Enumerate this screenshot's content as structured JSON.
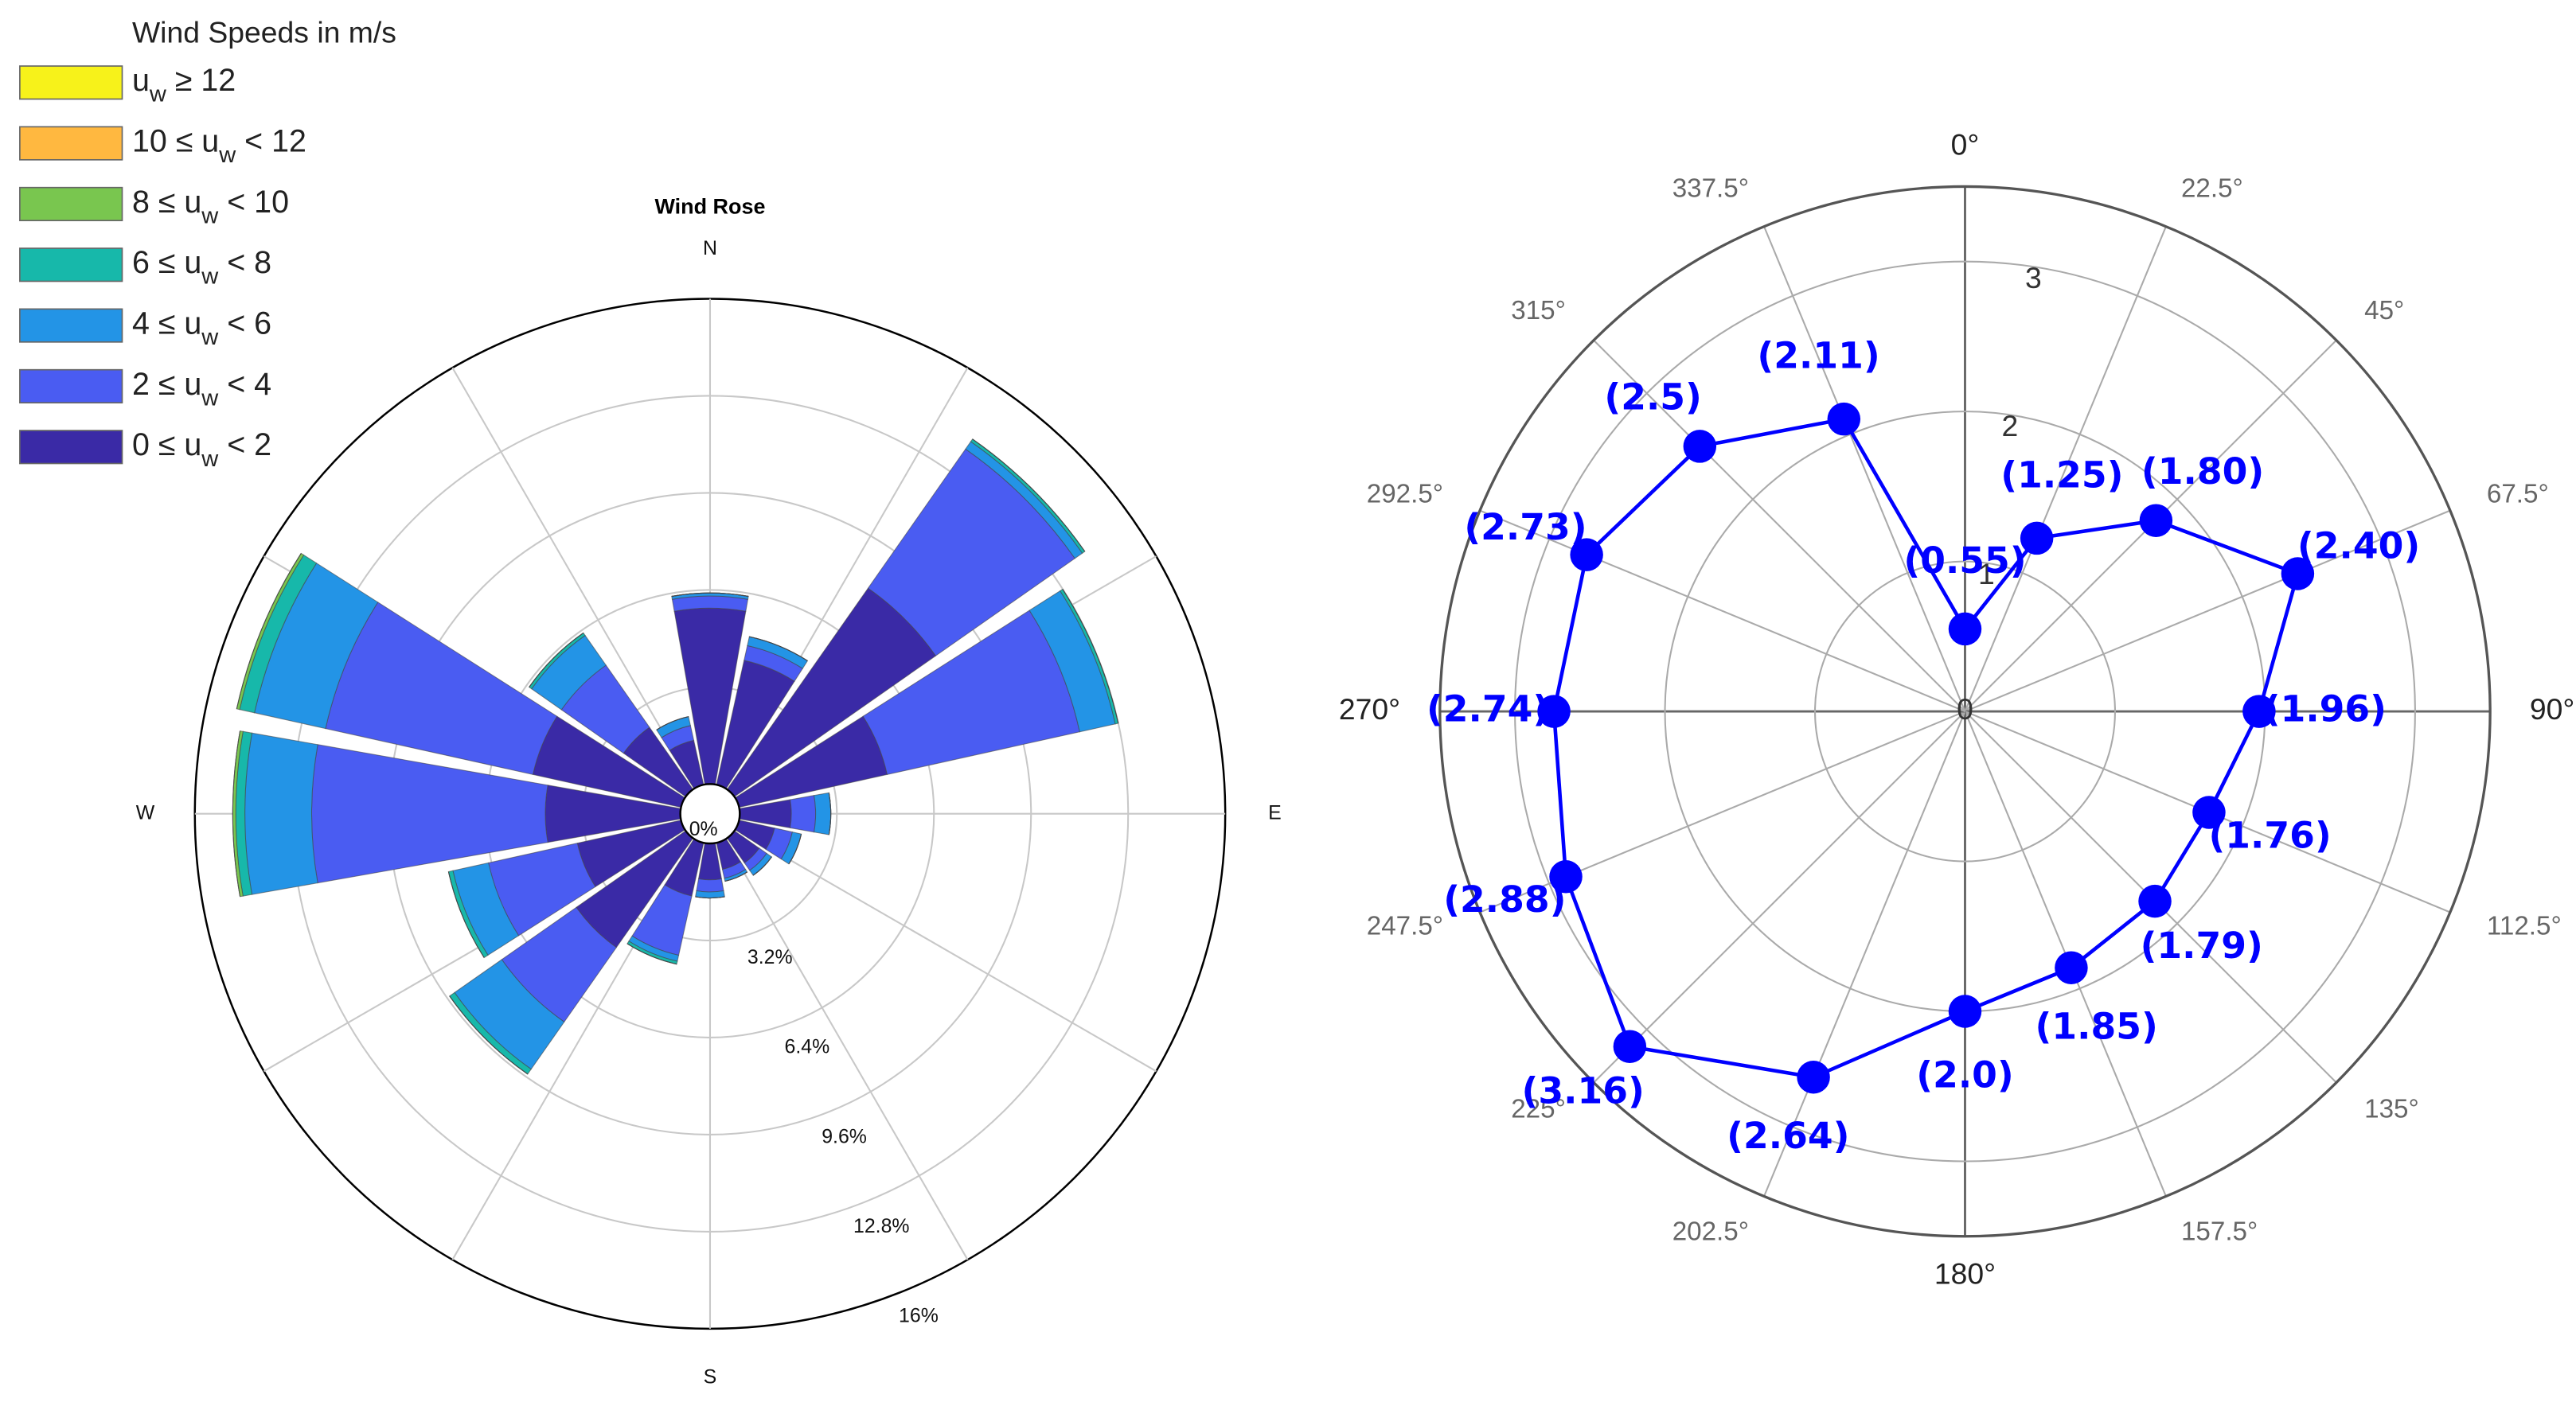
{
  "chart_data": [
    {
      "type": "windrose",
      "title": "Wind Rose",
      "legend_title": "Wind Speeds in m/s",
      "theta": [
        0,
        22.5,
        45,
        67.5,
        90,
        112.5,
        135,
        157.5,
        180,
        202.5,
        225,
        247.5,
        270,
        292.5,
        315,
        337.5
      ],
      "series": [
        {
          "name": "0 ≤ uw < 2",
          "color": "#3a2aa6",
          "values": [
            5.8,
            4.2,
            8.1,
            5.0,
            1.7,
            1.2,
            1.0,
            0.9,
            1.2,
            1.8,
            4.4,
            3.5,
            4.45,
            5.0,
            2.5,
            1.5
          ]
        },
        {
          "name": "2 ≤ uw < 4",
          "color": "#4a5cf2",
          "values": [
            0.4,
            0.5,
            5.6,
            6.5,
            0.8,
            0.6,
            0.3,
            0.3,
            0.4,
            2.0,
            3.0,
            3.0,
            7.7,
            7.0,
            2.5,
            0.5
          ]
        },
        {
          "name": "4 ≤ uw < 6",
          "color": "#2394e6",
          "values": [
            0.1,
            0.3,
            0.3,
            1.2,
            0.5,
            0.3,
            0.2,
            0.1,
            0.2,
            0.2,
            1.9,
            1.2,
            2.2,
            2.4,
            1.2,
            0.3
          ]
        },
        {
          "name": "6 ≤ uw < 8",
          "color": "#17b8aa",
          "values": [
            0,
            0,
            0.1,
            0.1,
            0,
            0,
            0,
            0,
            0,
            0.1,
            0.2,
            0.15,
            0.3,
            0.5,
            0.1,
            0
          ]
        },
        {
          "name": "8 ≤ uw < 10",
          "color": "#79c64f",
          "values": [
            0,
            0,
            0,
            0,
            0,
            0,
            0,
            0,
            0,
            0,
            0,
            0,
            0.1,
            0.1,
            0,
            0
          ]
        },
        {
          "name": "10 ≤ uw < 12",
          "color": "#ffb840",
          "values": [
            0,
            0,
            0,
            0,
            0,
            0,
            0,
            0,
            0,
            0,
            0,
            0,
            0,
            0,
            0,
            0
          ]
        },
        {
          "name": "uw ≥ 12",
          "color": "#f7f21a",
          "values": [
            0,
            0,
            0,
            0,
            0,
            0,
            0,
            0,
            0,
            0,
            0,
            0,
            0,
            0,
            0,
            0
          ]
        }
      ],
      "rlim": [
        0,
        16
      ],
      "rticks": [
        {
          "value": 0,
          "label": "0%"
        },
        {
          "value": 3.2,
          "label": "3.2%"
        },
        {
          "value": 6.4,
          "label": "6.4%"
        },
        {
          "value": 9.6,
          "label": "9.6%"
        },
        {
          "value": 12.8,
          "label": "12.8%"
        },
        {
          "value": 16,
          "label": "16%"
        }
      ],
      "thetagrid": [
        0,
        30,
        60,
        90,
        120,
        150,
        180,
        210,
        240,
        270,
        300,
        330
      ],
      "thetaticks": [
        {
          "value": 0,
          "label": "N"
        },
        {
          "value": 90,
          "label": "E"
        },
        {
          "value": 180,
          "label": "S"
        },
        {
          "value": 270,
          "label": "W"
        }
      ]
    },
    {
      "type": "polarline",
      "theta": [
        0,
        22.5,
        45,
        67.5,
        90,
        112.5,
        135,
        157.5,
        180,
        202.5,
        225,
        247.5,
        270,
        292.5,
        315,
        337.5
      ],
      "values": [
        0.55,
        1.25,
        1.8,
        2.4,
        1.96,
        1.76,
        1.79,
        1.85,
        2.0,
        2.64,
        3.16,
        2.88,
        2.74,
        2.73,
        2.5,
        2.11
      ],
      "value_labels": [
        "(0.55)",
        "(1.25)",
        "(1.80)",
        "(2.40)",
        "(1.96)",
        "(1.76)",
        "(1.79)",
        "(1.85)",
        "(2.0)",
        "(2.64)",
        "(3.16)",
        "(2.88)",
        "(2.74)",
        "(2.73)",
        "(2.5)",
        "(2.11)"
      ],
      "color": "#0000ff",
      "rlim": [
        0,
        3.5
      ],
      "rticks": [
        0,
        1,
        2,
        3
      ],
      "thetaticks": [
        {
          "value": 0,
          "label": "0°"
        },
        {
          "value": 22.5,
          "label": "22.5°"
        },
        {
          "value": 45,
          "label": "45°"
        },
        {
          "value": 67.5,
          "label": "67.5°"
        },
        {
          "value": 90,
          "label": "90°"
        },
        {
          "value": 112.5,
          "label": "112.5°"
        },
        {
          "value": 135,
          "label": "135°"
        },
        {
          "value": 157.5,
          "label": "157.5°"
        },
        {
          "value": 180,
          "label": "180°"
        },
        {
          "value": 202.5,
          "label": "202.5°"
        },
        {
          "value": 225,
          "label": "225°"
        },
        {
          "value": 247.5,
          "label": "247.5°"
        },
        {
          "value": 270,
          "label": "270°"
        },
        {
          "value": 292.5,
          "label": "292.5°"
        },
        {
          "value": 315,
          "label": "315°"
        },
        {
          "value": 337.5,
          "label": "337.5°"
        }
      ]
    }
  ]
}
